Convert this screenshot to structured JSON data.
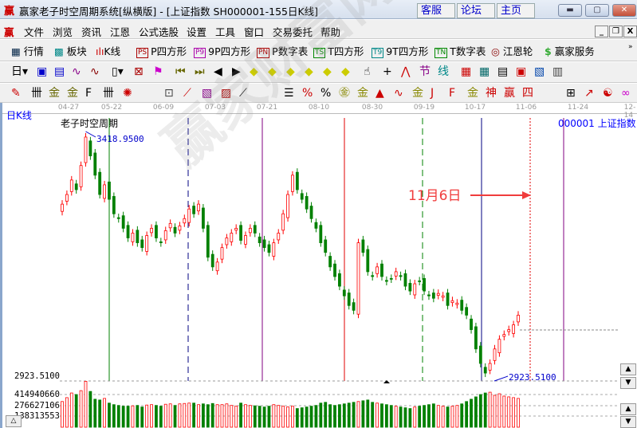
{
  "window": {
    "title": "赢家老子时空周期系统[纵横版] - [上证指数  SH000001-155日K线]",
    "links": [
      "客服",
      "论坛",
      "主页"
    ]
  },
  "menu": [
    "文件",
    "浏览",
    "资讯",
    "江恩",
    "公式选股",
    "设置",
    "工具",
    "窗口",
    "交易委托",
    "帮助"
  ],
  "toolbar1": [
    {
      "label": "行情",
      "icon": "grid-table-icon"
    },
    {
      "label": "板块",
      "icon": "blocks-icon"
    },
    {
      "label": "K线",
      "icon": "candlestick-icon"
    },
    {
      "label": "P四方形",
      "icon": "PS"
    },
    {
      "label": "9P四方形",
      "icon": "P9"
    },
    {
      "label": "P数字表",
      "icon": "PN"
    },
    {
      "label": "T四方形",
      "icon": "TS"
    },
    {
      "label": "9T四方形",
      "icon": "T9"
    },
    {
      "label": "T数字表",
      "icon": "TN"
    },
    {
      "label": "江恩轮",
      "icon": "wheel-icon"
    },
    {
      "label": "赢家服务",
      "icon": "dollar-icon"
    }
  ],
  "chart": {
    "period_label": "日K线",
    "study_label": "老子时空周期",
    "index_label": "000001  上证指数",
    "dates": [
      "04-27",
      "05-22",
      "06-09",
      "07-03",
      "07-21",
      "08-10",
      "08-30",
      "09-19",
      "10-17",
      "11-06",
      "11-24",
      "12-14"
    ],
    "high_label": "3418.9500",
    "low_label": "2923.5100",
    "axis_low": "2923.5100",
    "annotation": "11月6日",
    "watermark": "赢家财富网 赢家江恩软件 股票分析软件 www.yingjia360.com QQ:1008003",
    "colors": {
      "up": "#ff0000",
      "down": "#008000"
    },
    "closes": [
      3280,
      3300,
      3330,
      3310,
      3360,
      3419,
      3380,
      3340,
      3300,
      3320,
      3290,
      3260,
      3250,
      3230,
      3210,
      3220,
      3200,
      3190,
      3215,
      3230,
      3210,
      3200,
      3225,
      3240,
      3220,
      3235,
      3250,
      3270,
      3260,
      3280,
      3230,
      3170,
      3150,
      3160,
      3190,
      3210,
      3220,
      3230,
      3205,
      3215,
      3230,
      3220,
      3200,
      3190,
      3180,
      3200,
      3220,
      3260,
      3300,
      3340,
      3310,
      3290,
      3270,
      3250,
      3230,
      3200,
      3180,
      3150,
      3130,
      3110,
      3090,
      3070,
      3060,
      3200,
      3180,
      3140,
      3130,
      3150,
      3130,
      3120,
      3125,
      3140,
      3130,
      3110,
      3100,
      3115,
      3120,
      3100,
      3090,
      3085,
      3095,
      3090,
      3070,
      3080,
      3075,
      3060,
      3050,
      3020,
      2980,
      2950,
      2930,
      2950,
      2980,
      3000,
      3010,
      3020,
      3030,
      3050
    ]
  },
  "volume": {
    "ticks": [
      "414940660",
      "276627106",
      "138313553"
    ],
    "values": [
      330,
      380,
      440,
      420,
      470,
      590,
      460,
      360,
      350,
      370,
      310,
      290,
      280,
      270,
      270,
      275,
      280,
      260,
      285,
      290,
      280,
      270,
      295,
      300,
      280,
      300,
      305,
      310,
      310,
      290,
      300,
      290,
      305,
      290,
      290,
      300,
      280,
      270,
      310,
      290,
      280,
      275,
      270,
      260,
      270,
      290,
      280,
      270,
      260,
      270,
      240,
      250,
      260,
      270,
      280,
      310,
      320,
      290,
      280,
      290,
      300,
      310,
      320,
      330,
      340,
      350,
      320,
      310,
      300,
      290,
      280,
      270,
      260,
      250,
      240,
      260,
      270,
      280,
      290,
      300,
      280,
      270,
      260,
      270,
      280,
      300,
      330,
      360,
      390,
      420,
      440,
      450,
      410,
      430,
      400,
      390,
      380,
      370
    ]
  },
  "window_controls": {
    "min": "_",
    "restore": "▫",
    "close": "X"
  }
}
